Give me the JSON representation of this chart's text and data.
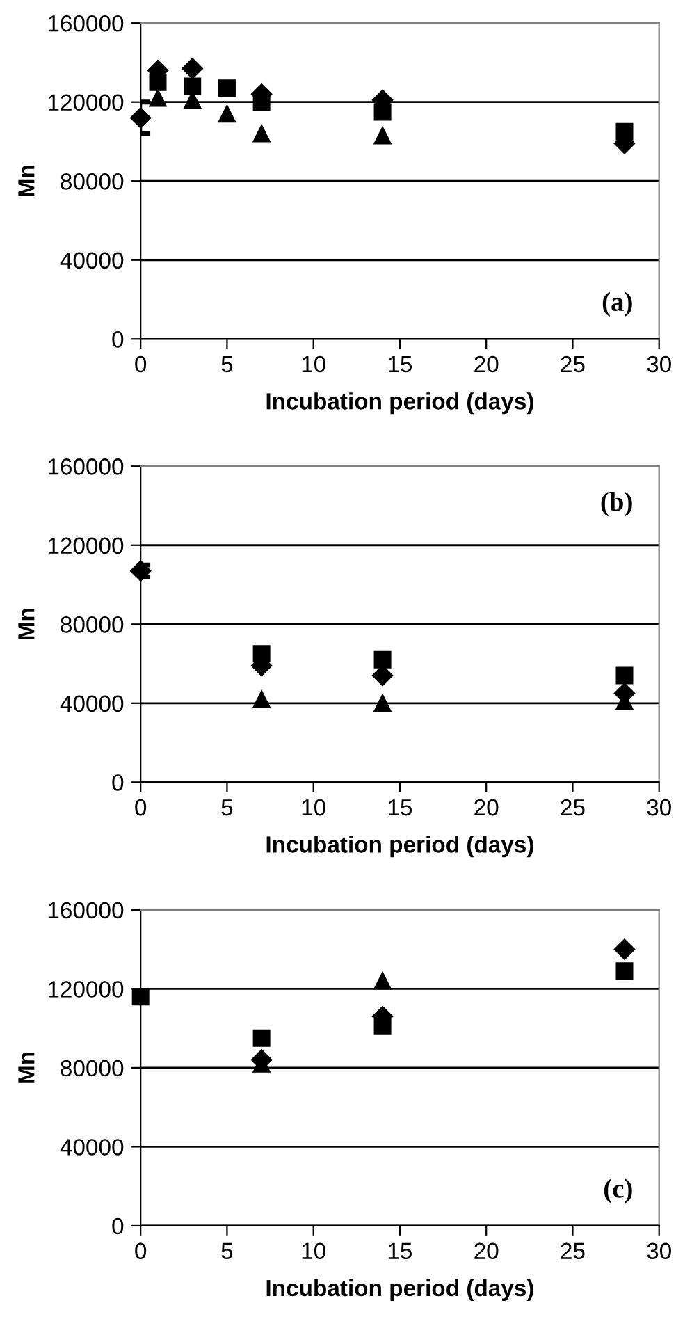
{
  "chart_data": [
    {
      "type": "scatter",
      "xlabel": "Incubation period (days)",
      "ylabel": "Mn",
      "annotations": [
        "(a)"
      ],
      "xlim": [
        0,
        30
      ],
      "xticks": [
        0,
        5,
        10,
        15,
        20,
        25,
        30
      ],
      "ylim": [
        0,
        160000
      ],
      "yticks": [
        0,
        40000,
        80000,
        120000,
        160000
      ],
      "grid": "y",
      "series": [
        {
          "color": "#000000",
          "marker": "diamond",
          "x": [
            0,
            1,
            3,
            5,
            7,
            14,
            28
          ],
          "values": [
            112000,
            136000,
            137000,
            null,
            124000,
            121000,
            99000
          ],
          "errors": [
            [
              104000,
              120000
            ],
            null,
            null,
            null,
            null,
            null,
            null
          ]
        },
        {
          "color": "#000000",
          "marker": "square",
          "x": [
            1,
            3,
            5,
            7,
            14,
            28
          ],
          "values": [
            130000,
            128000,
            127000,
            120000,
            115000,
            105000
          ]
        },
        {
          "color": "#000000",
          "marker": "triangle",
          "x": [
            1,
            3,
            5,
            7,
            14
          ],
          "values": [
            122000,
            121000,
            114000,
            104000,
            103000
          ]
        }
      ]
    },
    {
      "type": "scatter",
      "xlabel": "Incubation period (days)",
      "ylabel": "Mn",
      "annotations": [
        "(b)"
      ],
      "xlim": [
        0,
        30
      ],
      "xticks": [
        0,
        5,
        10,
        15,
        20,
        25,
        30
      ],
      "ylim": [
        0,
        160000
      ],
      "yticks": [
        0,
        40000,
        80000,
        120000,
        160000
      ],
      "grid": "y",
      "series": [
        {
          "color": "#000000",
          "marker": "diamond",
          "x": [
            0,
            7,
            14,
            28
          ],
          "values": [
            107000,
            59000,
            54000,
            45000
          ],
          "errors": [
            [
              104000,
              110000
            ],
            null,
            null,
            null
          ]
        },
        {
          "color": "#000000",
          "marker": "square",
          "x": [
            7,
            14,
            28
          ],
          "values": [
            65000,
            62000,
            54000
          ]
        },
        {
          "color": "#000000",
          "marker": "triangle",
          "x": [
            7,
            14,
            28
          ],
          "values": [
            42000,
            40000,
            41000
          ]
        }
      ]
    },
    {
      "type": "scatter",
      "xlabel": "Incubation period (days)",
      "ylabel": "Mn",
      "annotations": [
        "(c)"
      ],
      "xlim": [
        0,
        30
      ],
      "xticks": [
        0,
        5,
        10,
        15,
        20,
        25,
        30
      ],
      "ylim": [
        0,
        160000
      ],
      "yticks": [
        0,
        40000,
        80000,
        120000,
        160000
      ],
      "grid": "y",
      "series": [
        {
          "color": "#000000",
          "marker": "diamond",
          "x": [
            7,
            14,
            28
          ],
          "values": [
            84000,
            106000,
            140000
          ]
        },
        {
          "color": "#000000",
          "marker": "square",
          "x": [
            0,
            7,
            14,
            28
          ],
          "values": [
            116000,
            95000,
            101000,
            129000
          ]
        },
        {
          "color": "#000000",
          "marker": "triangle",
          "x": [
            7,
            14
          ],
          "values": [
            82000,
            124000
          ]
        }
      ]
    }
  ]
}
